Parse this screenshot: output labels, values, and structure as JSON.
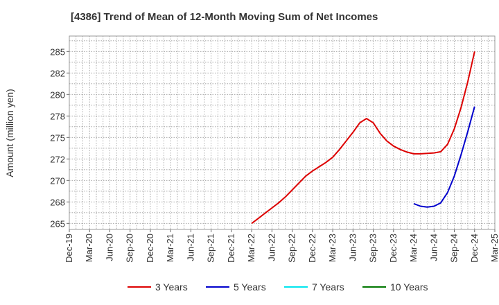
{
  "chart_data": {
    "type": "line",
    "title": "[4386]  Trend of Mean of 12-Month Moving Sum of Net Incomes",
    "ylabel": "Amount (million yen)",
    "xlabel": "",
    "ylim": [
      264.3,
      286.8
    ],
    "yticks": [
      265,
      268,
      270,
      272,
      275,
      278,
      280,
      282,
      285
    ],
    "ytick_values": [
      265,
      267.5,
      270,
      272.5,
      275,
      277.5,
      280,
      282.5,
      285
    ],
    "xlim": [
      "Dec-19",
      "Mar-25"
    ],
    "xticks": [
      "Dec-19",
      "Mar-20",
      "Jun-20",
      "Sep-20",
      "Dec-20",
      "Mar-21",
      "Jun-21",
      "Sep-21",
      "Dec-21",
      "Mar-22",
      "Jun-22",
      "Sep-22",
      "Dec-22",
      "Mar-23",
      "Jun-23",
      "Sep-23",
      "Dec-23",
      "Mar-24",
      "Jun-24",
      "Sep-24",
      "Dec-24",
      "Mar-25"
    ],
    "grid": true,
    "legend_position": "bottom",
    "series": [
      {
        "name": "3 Years",
        "color": "#dd0000",
        "x": [
          "Mar-22",
          "Apr-22",
          "May-22",
          "Jun-22",
          "Jul-22",
          "Aug-22",
          "Sep-22",
          "Oct-22",
          "Nov-22",
          "Dec-22",
          "Jan-23",
          "Feb-23",
          "Mar-23",
          "Apr-23",
          "May-23",
          "Jun-23",
          "Jul-23",
          "Aug-23",
          "Sep-23",
          "Oct-23",
          "Nov-23",
          "Dec-23",
          "Jan-24",
          "Feb-24",
          "Mar-24",
          "Apr-24",
          "May-24",
          "Jun-24",
          "Jul-24",
          "Aug-24",
          "Sep-24",
          "Oct-24",
          "Nov-24",
          "Dec-24"
        ],
        "y": [
          265.0,
          265.6,
          266.2,
          266.8,
          267.4,
          268.1,
          268.9,
          269.7,
          270.5,
          271.1,
          271.6,
          272.1,
          272.7,
          273.6,
          274.6,
          275.6,
          276.7,
          277.2,
          276.7,
          275.5,
          274.6,
          274.0,
          273.6,
          273.3,
          273.1,
          273.1,
          273.15,
          273.2,
          273.35,
          274.2,
          276.0,
          278.5,
          281.5,
          285.0
        ]
      },
      {
        "name": "5 Years",
        "color": "#0000cc",
        "x": [
          "Mar-24",
          "Apr-24",
          "May-24",
          "Jun-24",
          "Jul-24",
          "Aug-24",
          "Sep-24",
          "Oct-24",
          "Nov-24",
          "Dec-24"
        ],
        "y": [
          267.3,
          267.0,
          266.9,
          267.0,
          267.4,
          268.6,
          270.5,
          273.0,
          275.7,
          278.6
        ]
      },
      {
        "name": "7 Years",
        "color": "#00e5ee",
        "x": [],
        "y": []
      },
      {
        "name": "10 Years",
        "color": "#007700",
        "x": [],
        "y": []
      }
    ]
  }
}
